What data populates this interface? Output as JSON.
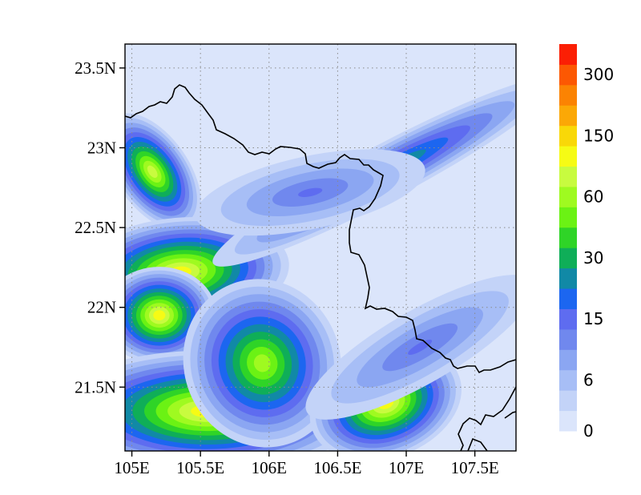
{
  "chart_data": {
    "type": "heatmap",
    "title": "",
    "xlabel": "",
    "ylabel": "",
    "xlim": [
      104.95,
      107.8
    ],
    "ylim": [
      21.1,
      23.65
    ],
    "x_ticks": [
      {
        "value": 105.0,
        "label": "105E"
      },
      {
        "value": 105.5,
        "label": "105.5E"
      },
      {
        "value": 106.0,
        "label": "106E"
      },
      {
        "value": 106.5,
        "label": "106.5E"
      },
      {
        "value": 107.0,
        "label": "107E"
      },
      {
        "value": 107.5,
        "label": "107.5E"
      }
    ],
    "y_ticks": [
      {
        "value": 21.5,
        "label": "21.5N"
      },
      {
        "value": 22.0,
        "label": "22N"
      },
      {
        "value": 22.5,
        "label": "22.5N"
      },
      {
        "value": 23.0,
        "label": "23N"
      },
      {
        "value": 23.5,
        "label": "23.5N"
      }
    ],
    "grid": true,
    "colorbar": {
      "placement": "right",
      "levels": [
        0,
        3,
        6,
        9,
        12,
        15,
        20,
        25,
        30,
        40,
        50,
        60,
        80,
        100,
        150,
        200,
        250,
        300
      ],
      "labels": [
        {
          "level_index": 0,
          "text": "0"
        },
        {
          "level_index": 2,
          "text": "6"
        },
        {
          "level_index": 5,
          "text": "15"
        },
        {
          "level_index": 8,
          "text": "30"
        },
        {
          "level_index": 11,
          "text": "60"
        },
        {
          "level_index": 14,
          "text": "150"
        },
        {
          "level_index": 17,
          "text": "300"
        }
      ],
      "colors": [
        "#dbe5fb",
        "#c3d3f8",
        "#a7bef6",
        "#8ba6f2",
        "#7088ee",
        "#5e6cf0",
        "#1c66f0",
        "#1189a6",
        "#0fae58",
        "#2fd427",
        "#6bf214",
        "#9ffa20",
        "#c8fb3f",
        "#f6fb15",
        "#f9d808",
        "#fba806",
        "#fb8302",
        "#fc5802",
        "#fb1f04"
      ]
    },
    "field": {
      "background_level": 0,
      "regions": [
        {
          "name": "north-west-core",
          "x": 105.15,
          "y": 22.85,
          "rx": 0.14,
          "ry": 0.22,
          "rot": -35,
          "peak": 80
        },
        {
          "name": "west-band-upper",
          "x": 105.35,
          "y": 22.22,
          "rx": 0.42,
          "ry": 0.18,
          "rot": -5,
          "peak": 100
        },
        {
          "name": "west-band-middle",
          "x": 105.2,
          "y": 21.95,
          "rx": 0.22,
          "ry": 0.16,
          "rot": 0,
          "peak": 100
        },
        {
          "name": "south-west-band",
          "x": 105.55,
          "y": 21.35,
          "rx": 0.6,
          "ry": 0.2,
          "rot": 0,
          "peak": 120
        },
        {
          "name": "south-central",
          "x": 105.95,
          "y": 21.65,
          "rx": 0.3,
          "ry": 0.28,
          "rot": -20,
          "peak": 60
        },
        {
          "name": "south-east-core",
          "x": 106.85,
          "y": 21.4,
          "rx": 0.3,
          "ry": 0.18,
          "rot": -20,
          "peak": 100
        },
        {
          "name": "north-east-ridge",
          "x": 106.85,
          "y": 22.85,
          "rx": 0.75,
          "ry": 0.09,
          "rot": -28,
          "peak": 30
        },
        {
          "name": "north-central-band",
          "x": 106.3,
          "y": 22.72,
          "rx": 0.45,
          "ry": 0.12,
          "rot": -12,
          "peak": 15
        },
        {
          "name": "east-band",
          "x": 107.1,
          "y": 21.75,
          "rx": 0.5,
          "ry": 0.12,
          "rot": -30,
          "peak": 15
        }
      ]
    }
  }
}
